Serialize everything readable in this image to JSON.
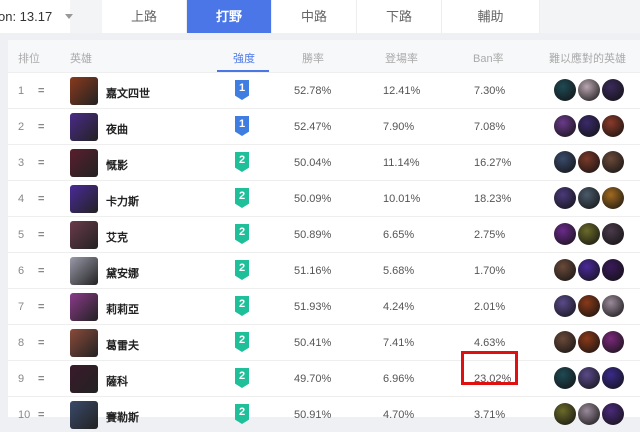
{
  "version": {
    "label": "on: 13.17"
  },
  "tabs": [
    {
      "label": "上路"
    },
    {
      "label": "打野",
      "active": true
    },
    {
      "label": "中路"
    },
    {
      "label": "下路"
    },
    {
      "label": "輔助"
    }
  ],
  "columns": {
    "rank": "排位",
    "hero": "英雄",
    "strength": "強度",
    "win": "勝率",
    "pick": "登場率",
    "ban": "Ban率",
    "counters": "難以應對的英雄"
  },
  "colors": {
    "accent": "#4a76e8",
    "tier1": "#3f7de0",
    "tier2": "#1fbf9a",
    "highlight": "#e01010"
  },
  "rows": [
    {
      "rank": "1",
      "trend": "=",
      "name": "嘉文四世",
      "tier": "1",
      "win": "52.78%",
      "pick": "12.41%",
      "ban": "7.30%",
      "hc": "#8a3a1e",
      "cc": [
        "#1f4a55",
        "#b9a6b0",
        "#3a2a5a"
      ]
    },
    {
      "rank": "2",
      "trend": "=",
      "name": "夜曲",
      "tier": "1",
      "win": "52.47%",
      "pick": "7.90%",
      "ban": "7.08%",
      "hc": "#4a2a8a",
      "cc": [
        "#6a3a8a",
        "#3a2a6a",
        "#8a3a2a"
      ]
    },
    {
      "rank": "3",
      "trend": "=",
      "name": "慨影",
      "tier": "2",
      "win": "50.04%",
      "pick": "11.14%",
      "ban": "16.27%",
      "hc": "#5a1e2e",
      "cc": [
        "#3a4a6a",
        "#7a3a2a",
        "#6a4a3a"
      ]
    },
    {
      "rank": "4",
      "trend": "=",
      "name": "卡力斯",
      "tier": "2",
      "win": "50.09%",
      "pick": "10.01%",
      "ban": "18.23%",
      "hc": "#4a2a9a",
      "cc": [
        "#4a3a7a",
        "#4a5a6a",
        "#a06a20"
      ]
    },
    {
      "rank": "5",
      "trend": "=",
      "name": "艾克",
      "tier": "2",
      "win": "50.89%",
      "pick": "6.65%",
      "ban": "2.75%",
      "hc": "#6a3a4a",
      "cc": [
        "#6a2a8a",
        "#6a6a2a",
        "#4a3a4a"
      ]
    },
    {
      "rank": "6",
      "trend": "=",
      "name": "黛安娜",
      "tier": "2",
      "win": "51.16%",
      "pick": "5.68%",
      "ban": "1.70%",
      "hc": "#9a9aaa",
      "cc": [
        "#6a4a3a",
        "#4a2a9a",
        "#3a1a5a"
      ]
    },
    {
      "rank": "7",
      "trend": "=",
      "name": "莉莉亞",
      "tier": "2",
      "win": "51.93%",
      "pick": "4.24%",
      "ban": "2.01%",
      "hc": "#8a3a8a",
      "cc": [
        "#5a4a8a",
        "#8a3a1a",
        "#9a8a9a"
      ]
    },
    {
      "rank": "8",
      "trend": "=",
      "name": "葛雷夫",
      "tier": "2",
      "win": "50.41%",
      "pick": "7.41%",
      "ban": "4.63%",
      "hc": "#8a4a3a",
      "cc": [
        "#6a4a3a",
        "#8a3a1a",
        "#7a2a7a"
      ]
    },
    {
      "rank": "9",
      "trend": "=",
      "name": "薩科",
      "tier": "2",
      "win": "49.70%",
      "pick": "6.96%",
      "ban": "23.02%",
      "hc": "#3a1a2a",
      "cc": [
        "#1f4a55",
        "#5a4a8a",
        "#3a2a8a"
      ],
      "highlight": true
    },
    {
      "rank": "10",
      "trend": "=",
      "name": "賽勒斯",
      "tier": "2",
      "win": "50.91%",
      "pick": "4.70%",
      "ban": "3.71%",
      "hc": "#3a4a6a",
      "cc": [
        "#6a6a2a",
        "#9a8a9a",
        "#4a2a7a"
      ]
    }
  ]
}
